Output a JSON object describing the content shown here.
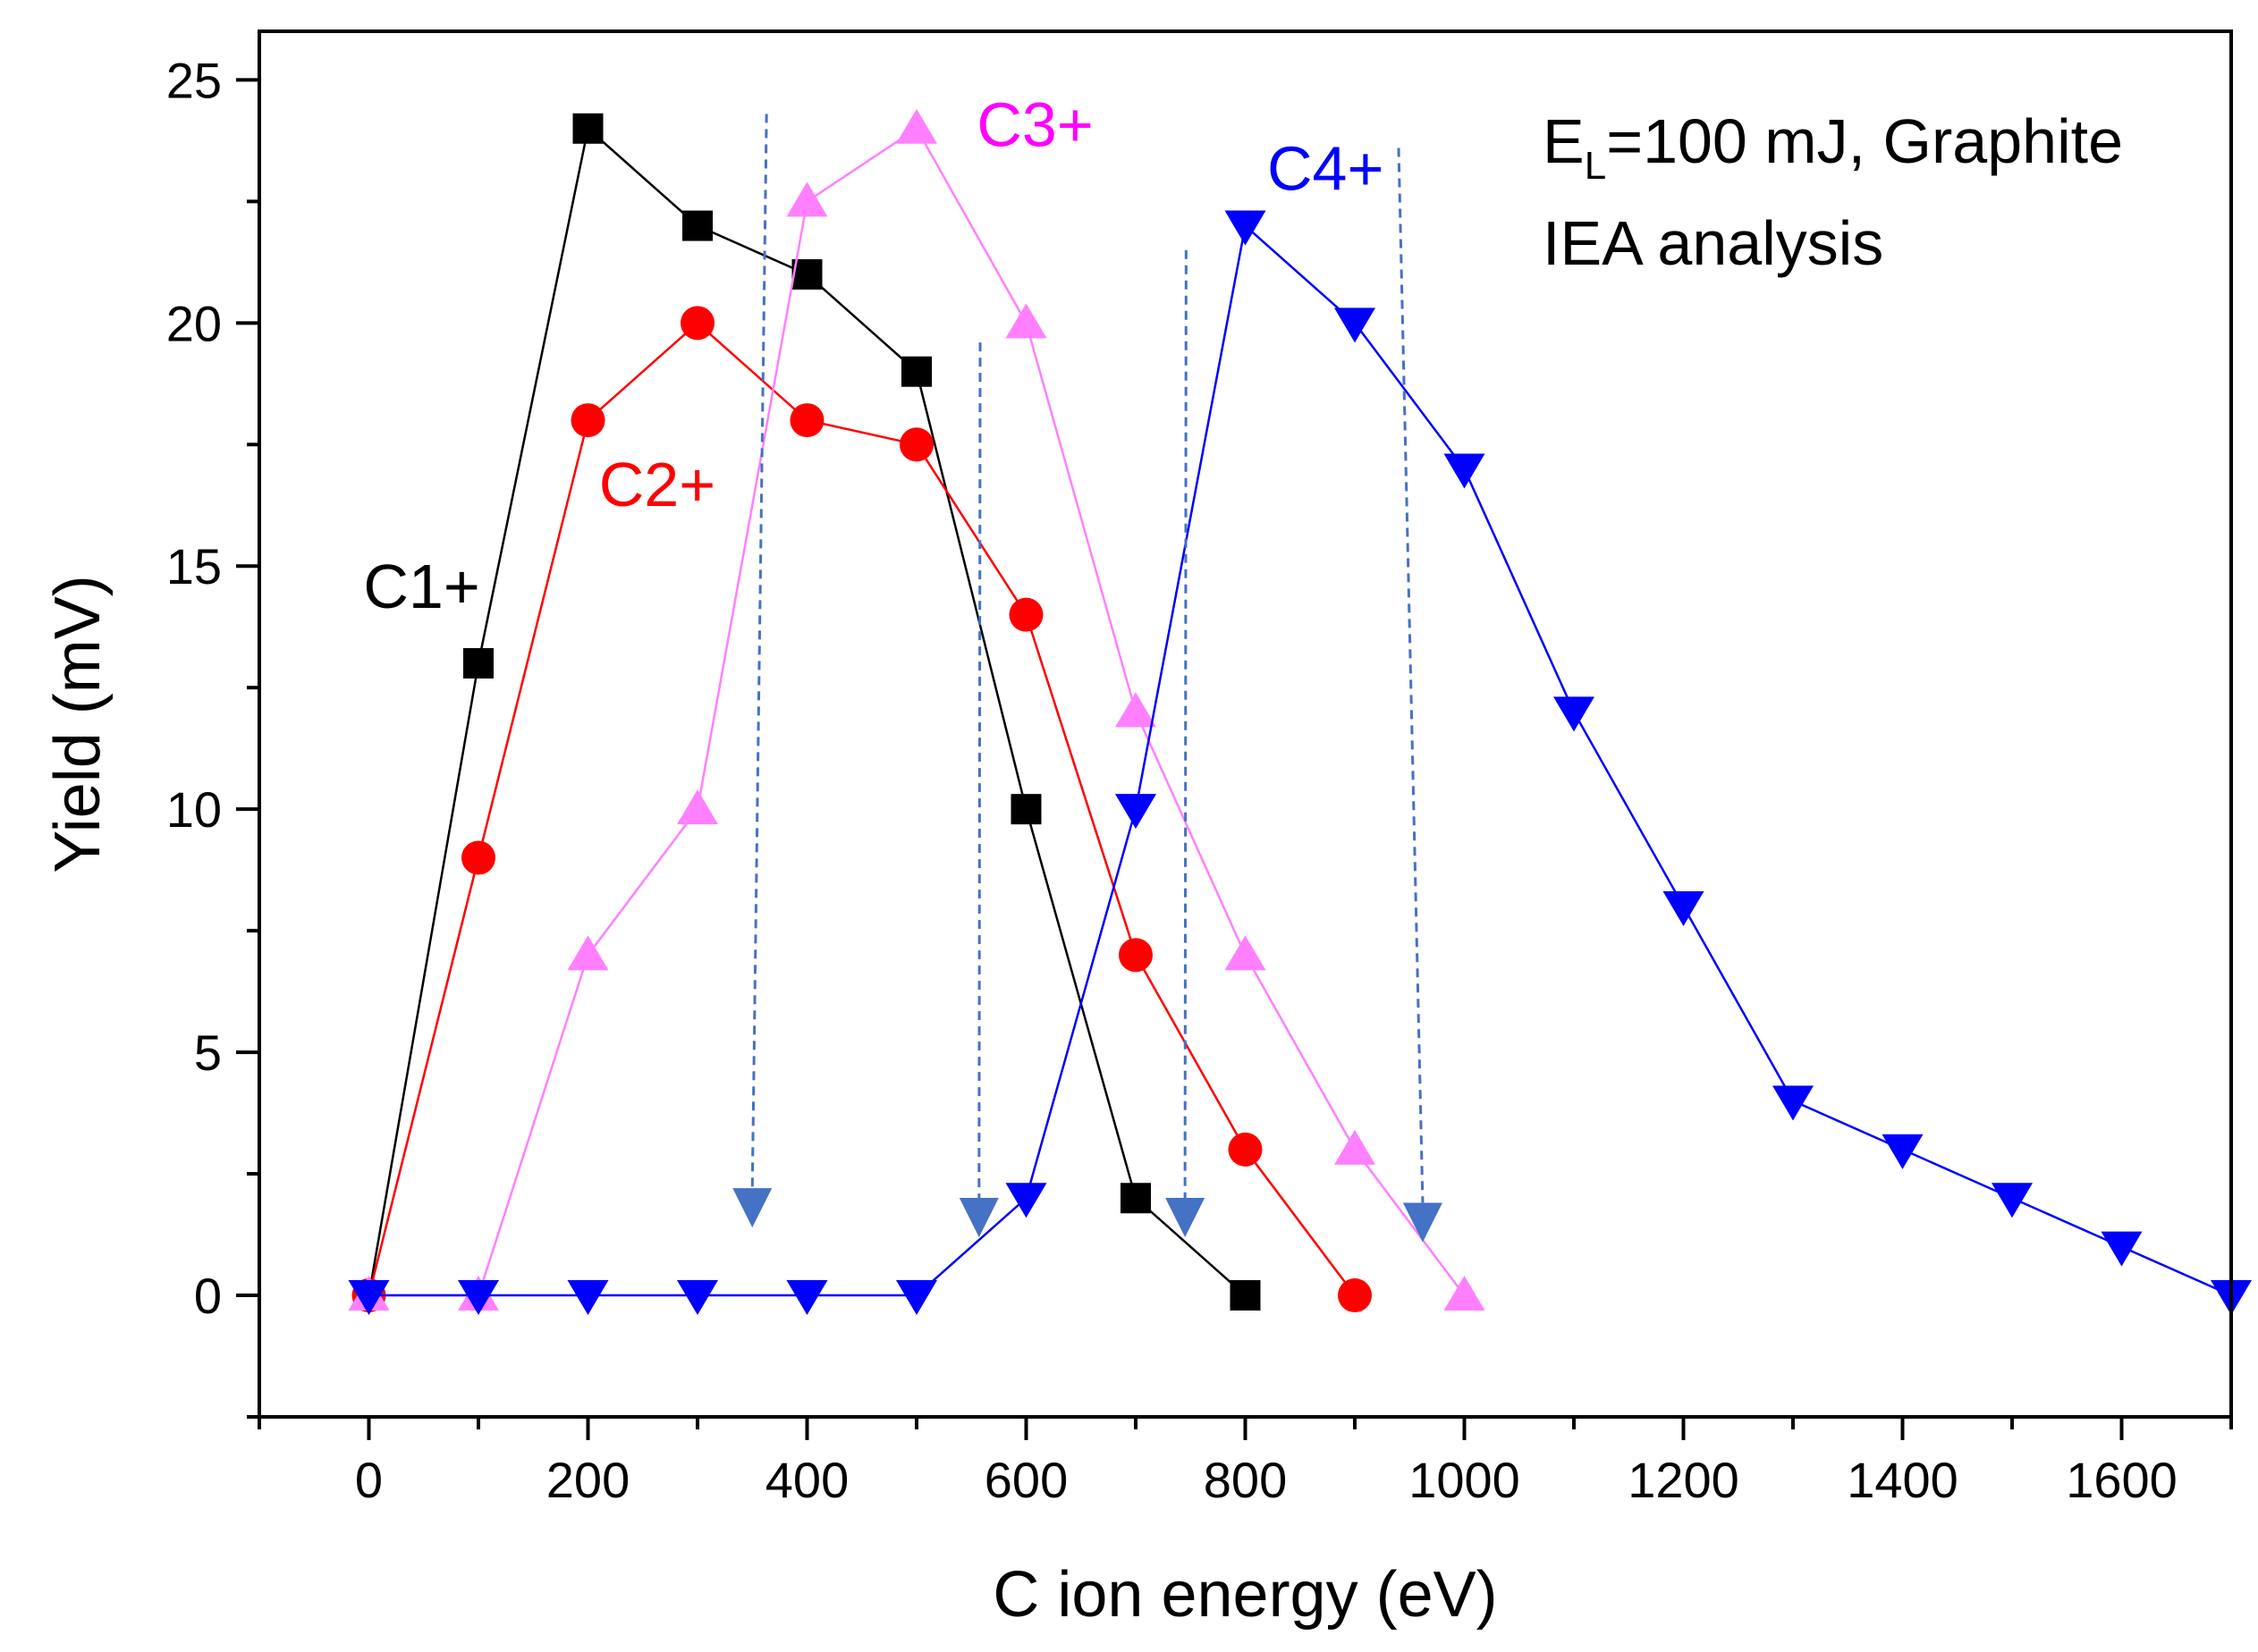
{
  "chart_data": {
    "type": "line",
    "title": "",
    "xlabel": "C ion energy (eV)",
    "ylabel": "Yield (mV)",
    "xlim": [
      -100,
      1700
    ],
    "ylim": [
      -2.5,
      26
    ],
    "x_ticks": [
      0,
      200,
      400,
      600,
      800,
      1000,
      1200,
      1400,
      1600
    ],
    "x_tick_labels": [
      "0",
      "200",
      "400",
      "600",
      "800",
      "1000",
      "1200",
      "1400",
      "1600"
    ],
    "y_ticks": [
      0,
      5,
      10,
      15,
      20,
      25
    ],
    "y_tick_labels": [
      "0",
      "5",
      "10",
      "15",
      "20",
      "25"
    ],
    "grid": false,
    "series": [
      {
        "name": "C1+",
        "label_text": "C1+",
        "color": "#000000",
        "marker": "square",
        "x": [
          0,
          100,
          200,
          300,
          400,
          500,
          600,
          700,
          800
        ],
        "y": [
          0,
          13,
          24,
          22,
          21,
          19,
          10,
          2,
          0
        ],
        "label_at": [
          -5,
          14.6
        ]
      },
      {
        "name": "C2+",
        "label_text": "C2+",
        "color": "#ff0000",
        "marker": "circle",
        "x": [
          0,
          100,
          200,
          300,
          400,
          500,
          600,
          700,
          800,
          900
        ],
        "y": [
          0,
          9,
          18,
          20,
          18,
          17.5,
          14,
          7,
          3,
          0
        ],
        "label_at": [
          210,
          16.7
        ]
      },
      {
        "name": "C3+",
        "label_text": "C3+",
        "color": "#ff80ff",
        "label_color": "#ff00ff",
        "marker": "triangle-up",
        "x": [
          0,
          100,
          200,
          300,
          400,
          500,
          600,
          700,
          800,
          900,
          1000
        ],
        "y": [
          0,
          0,
          7,
          10,
          22.5,
          24,
          20,
          12,
          7,
          3,
          0
        ],
        "label_at": [
          555,
          24.1
        ]
      },
      {
        "name": "C4+",
        "label_text": "C4+",
        "color": "#0000ff",
        "marker": "triangle-down",
        "x": [
          0,
          100,
          200,
          300,
          400,
          500,
          600,
          700,
          800,
          900,
          1000,
          1100,
          1200,
          1300,
          1400,
          1500,
          1600,
          1700
        ],
        "y": [
          0,
          0,
          0,
          0,
          0,
          0,
          2,
          10,
          22,
          20,
          17,
          12,
          8,
          4,
          3,
          2,
          1,
          0
        ],
        "label_at": [
          820,
          23.2
        ]
      }
    ],
    "threshold_arrows": {
      "color": "#4472c4",
      "style": "dashed",
      "items": [
        {
          "x_top": 363,
          "y_top": 24.3,
          "x_head": 350,
          "y_head": 1.8
        },
        {
          "x_top": 558,
          "y_top": 19.6,
          "x_head": 557,
          "y_head": 1.6
        },
        {
          "x_top": 746,
          "y_top": 21.5,
          "x_head": 745,
          "y_head": 1.6
        },
        {
          "x_top": 940,
          "y_top": 23.6,
          "x_head": 962,
          "y_head": 1.5
        }
      ]
    },
    "annotations": [
      {
        "text": "E",
        "subscript": "L",
        "rest": "=100 mJ, Graphite"
      },
      {
        "text": "IEA analysis"
      }
    ]
  }
}
